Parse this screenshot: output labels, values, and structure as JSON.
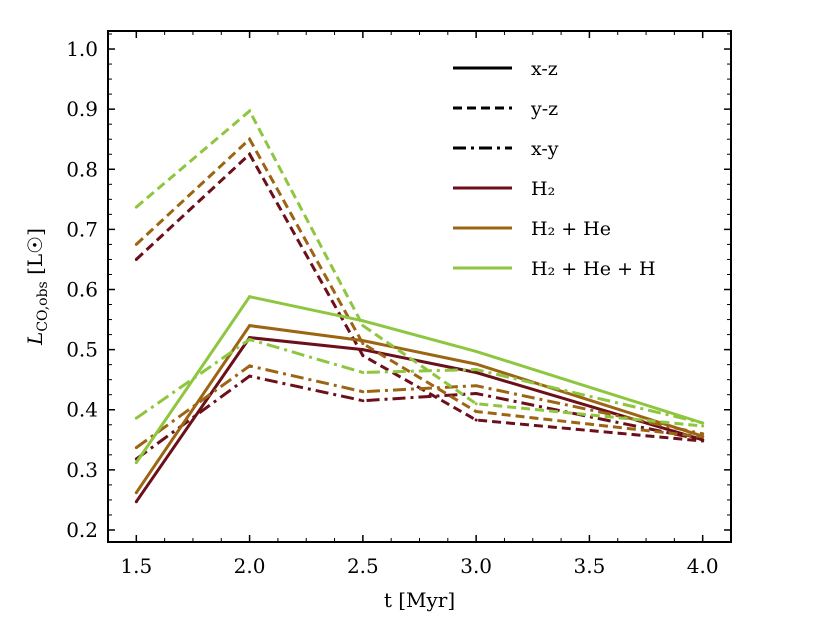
{
  "chart_data": {
    "type": "line",
    "xlabel": "t [Myr]",
    "ylabel": "L_CO,obs [L☉]",
    "xlim": [
      1.375,
      4.125
    ],
    "ylim": [
      0.18,
      1.03
    ],
    "xticks": [
      "1.5",
      "2.0",
      "2.5",
      "3.0",
      "3.5",
      "4.0"
    ],
    "yticks": [
      "0.2",
      "0.3",
      "0.4",
      "0.5",
      "0.6",
      "0.7",
      "0.8",
      "0.9",
      "1.0"
    ],
    "grid": false,
    "legend_position": "top-right",
    "x": [
      1.5,
      2.0,
      2.5,
      3.0,
      4.0
    ],
    "line_styles": [
      {
        "label": "x-z",
        "dash": "solid"
      },
      {
        "label": "y-z",
        "dash": "dashed"
      },
      {
        "label": "x-y",
        "dash": "dashdot"
      }
    ],
    "models": [
      {
        "label": "H₂",
        "color": "#6b0f1a"
      },
      {
        "label": "H₂ + He",
        "color": "#9c6514"
      },
      {
        "label": "H₂ + He + H",
        "color": "#8ec63f"
      }
    ],
    "series": [
      {
        "model": 0,
        "style": 0,
        "values": [
          0.247,
          0.52,
          0.5,
          0.462,
          0.35
        ]
      },
      {
        "model": 0,
        "style": 1,
        "values": [
          0.65,
          0.825,
          0.49,
          0.383,
          0.348
        ]
      },
      {
        "model": 0,
        "style": 2,
        "values": [
          0.318,
          0.456,
          0.415,
          0.427,
          0.35
        ]
      },
      {
        "model": 1,
        "style": 0,
        "values": [
          0.262,
          0.54,
          0.515,
          0.476,
          0.356
        ]
      },
      {
        "model": 1,
        "style": 1,
        "values": [
          0.675,
          0.85,
          0.51,
          0.397,
          0.355
        ]
      },
      {
        "model": 1,
        "style": 2,
        "values": [
          0.337,
          0.473,
          0.43,
          0.44,
          0.36
        ]
      },
      {
        "model": 2,
        "style": 0,
        "values": [
          0.312,
          0.588,
          0.548,
          0.497,
          0.378
        ]
      },
      {
        "model": 2,
        "style": 1,
        "values": [
          0.737,
          0.897,
          0.54,
          0.41,
          0.373
        ]
      },
      {
        "model": 2,
        "style": 2,
        "values": [
          0.386,
          0.517,
          0.462,
          0.467,
          0.378
        ]
      }
    ]
  }
}
